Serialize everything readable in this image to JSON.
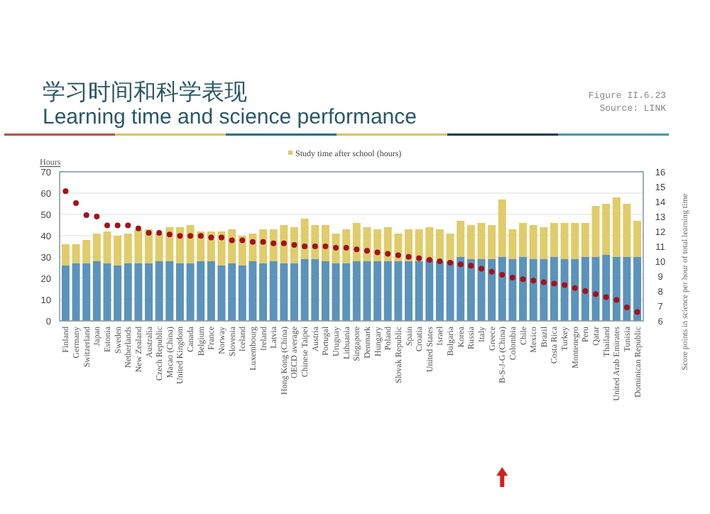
{
  "chart_data": {
    "type": "bar",
    "title": "学习时间和科学表现",
    "subtitle": "Learning time and science performance",
    "annotations": [
      "Figure II.6.23",
      "Source: LINK"
    ],
    "ylabel": "Hours",
    "y2label": "Score points in science per hour of total learning time",
    "categories": [
      "Finland",
      "Germany",
      "Switzerland",
      "Japan",
      "Estonia",
      "Sweden",
      "Netherlands",
      "New Zealand",
      "Australia",
      "Czech Republic",
      "Macao (China)",
      "United Kingdom",
      "Canada",
      "Belgium",
      "France",
      "Norway",
      "Slovenia",
      "Iceland",
      "Luxembourg",
      "Ireland",
      "Latvia",
      "Hong Kong (China)",
      "OECD average",
      "Chinese Taipei",
      "Austria",
      "Portugal",
      "Uruguay",
      "Lithuania",
      "Singapore",
      "Denmark",
      "Hungary",
      "Poland",
      "Slovak Republic",
      "Spain",
      "Croatia",
      "United States",
      "Israel",
      "Bulgaria",
      "Korea",
      "Russia",
      "Italy",
      "Greece",
      "B-S-J-G (China)",
      "Colombia",
      "Chile",
      "Mexico",
      "Brazil",
      "Costa Rica",
      "Turkey",
      "Montenegro",
      "Peru",
      "Qatar",
      "Thailand",
      "United Arab Emirates",
      "Tunisia",
      "Dominican Republic"
    ],
    "stacked": true,
    "grid": "y",
    "legend": "top",
    "ylim": [
      0,
      70
    ],
    "yticks": [
      0,
      10,
      20,
      30,
      40,
      50,
      60,
      70
    ],
    "y2lim": [
      6,
      16
    ],
    "y2ticks": [
      6,
      7,
      8,
      9,
      10,
      11,
      12,
      13,
      14,
      15,
      16
    ],
    "series": [
      {
        "color": "#5b93bb",
        "values": [
          26,
          27,
          27,
          28,
          27,
          26,
          27,
          27,
          27,
          28,
          28,
          27,
          27,
          28,
          28,
          26,
          27,
          26,
          28,
          27,
          28,
          27,
          27,
          29,
          29,
          28,
          27,
          27,
          28,
          28,
          28,
          28,
          28,
          28,
          28,
          29,
          28,
          28,
          30,
          29,
          29,
          29,
          30,
          29,
          30,
          29,
          29,
          30,
          29,
          29,
          30,
          30,
          31,
          30,
          30,
          30
        ]
      },
      {
        "name": "Study time after school (hours)",
        "color": "#e0cc6a",
        "values": [
          10,
          9,
          11,
          13,
          15,
          14,
          14,
          16,
          16,
          13,
          16,
          17,
          18,
          14,
          14,
          16,
          16,
          14,
          13,
          16,
          15,
          18,
          17,
          19,
          16,
          17,
          14,
          16,
          18,
          16,
          15,
          16,
          13,
          15,
          15,
          15,
          15,
          13,
          17,
          16,
          17,
          16,
          27,
          14,
          16,
          16,
          15,
          16,
          17,
          17,
          16,
          24,
          24,
          28,
          25,
          17
        ]
      },
      {
        "type": "scatter",
        "axis": "y2",
        "marker": "circle",
        "color": "#a3121c",
        "values": [
          14.7,
          13.9,
          13.1,
          13.0,
          12.4,
          12.4,
          12.4,
          12.2,
          11.9,
          11.9,
          11.8,
          11.7,
          11.7,
          11.7,
          11.6,
          11.6,
          11.4,
          11.4,
          11.3,
          11.3,
          11.2,
          11.2,
          11.1,
          11.0,
          11.0,
          11.0,
          10.9,
          10.9,
          10.8,
          10.7,
          10.6,
          10.5,
          10.4,
          10.3,
          10.2,
          10.1,
          10.0,
          9.9,
          9.8,
          9.7,
          9.5,
          9.3,
          9.1,
          8.9,
          8.8,
          8.7,
          8.6,
          8.5,
          8.4,
          8.2,
          8.0,
          7.8,
          7.6,
          7.4,
          6.9,
          6.6
        ]
      }
    ]
  }
}
